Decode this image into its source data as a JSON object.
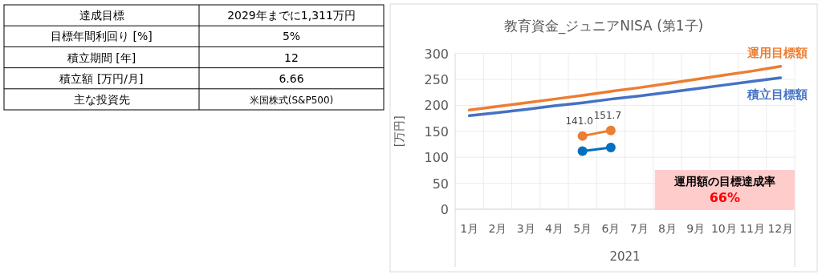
{
  "chart_data": [
    {
      "type": "other",
      "annotations": [
        "達成目標",
        "2029年までに1,311万円",
        "目標年間利回り [%]",
        "5%",
        "積立期間 [年]",
        "12",
        "積立額 [万円/月]",
        "6.66",
        "主な投資先",
        "米国株式(S&P500)"
      ]
    },
    {
      "type": "line",
      "title": "教育資金_ジュニアNISA (第1子)",
      "xlabel": "2021",
      "ylabel": "[万円]",
      "categories": [
        "1月",
        "2月",
        "3月",
        "4月",
        "5月",
        "6月",
        "7月",
        "8月",
        "9月",
        "10月",
        "11月",
        "12月"
      ],
      "series": [
        {
          "name": "運用目標額",
          "color": "#ed7d31",
          "marker": "none",
          "values": [
            191,
            198,
            205,
            212,
            219,
            227,
            234,
            242,
            250,
            258,
            266,
            275
          ]
        },
        {
          "name": "積立目標額",
          "color": "#4472c4",
          "marker": "none",
          "values": [
            180,
            186,
            192,
            199,
            205,
            212,
            218,
            225,
            232,
            239,
            246,
            253
          ]
        },
        {
          "color": "#ed7d31",
          "marker": "circle",
          "values": [
            null,
            null,
            null,
            null,
            141.0,
            151.7,
            null,
            null,
            null,
            null,
            null,
            null
          ],
          "value_labels": [
            null,
            null,
            null,
            null,
            "141.0",
            "151.7",
            null,
            null,
            null,
            null,
            null,
            null
          ]
        },
        {
          "color": "#0070c0",
          "marker": "circle",
          "values": [
            null,
            null,
            null,
            null,
            112,
            119,
            null,
            null,
            null,
            null,
            null,
            null
          ]
        }
      ],
      "ylim": [
        0,
        300
      ],
      "yticks": [
        0,
        50,
        100,
        150,
        200,
        250,
        300
      ],
      "grid": true,
      "annotations": [
        "運用額の目標達成率",
        "66%"
      ]
    }
  ]
}
